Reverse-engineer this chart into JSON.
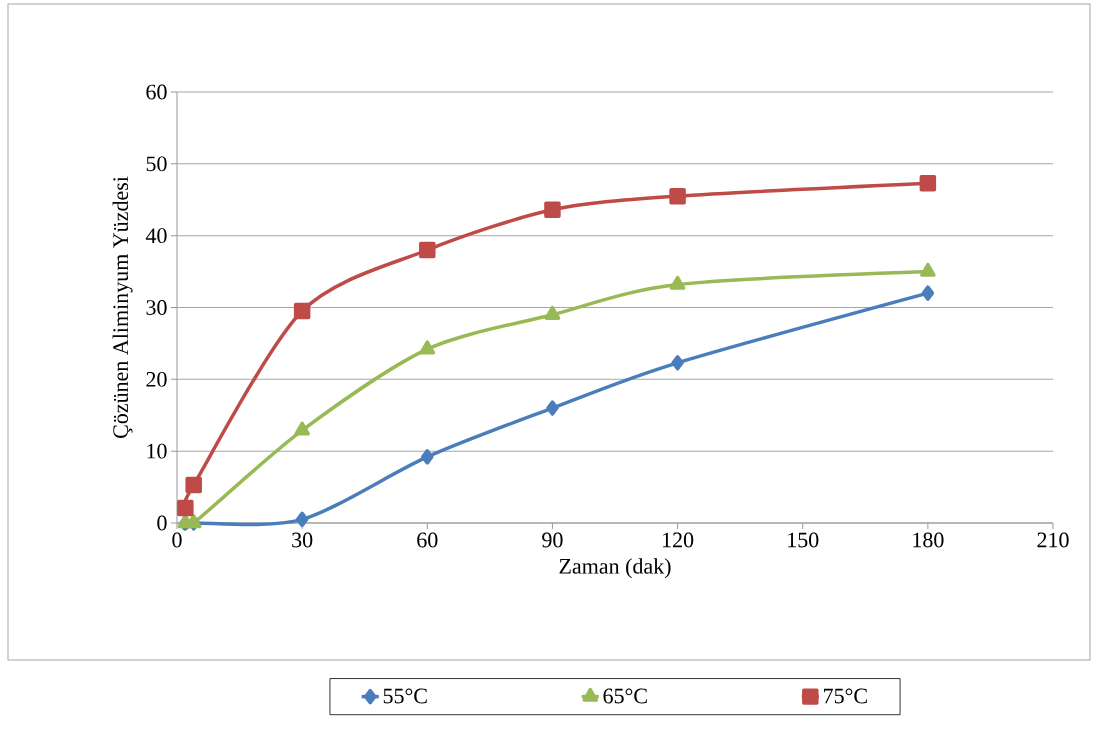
{
  "chart_data": {
    "type": "line",
    "xlabel": "Zaman (dak)",
    "ylabel": "Çözünen Aliminyum Yüzdesi",
    "xlim": [
      0,
      210
    ],
    "xticks": [
      0,
      30,
      60,
      90,
      120,
      150,
      180,
      210
    ],
    "ylim": [
      0,
      60
    ],
    "yticks": [
      0,
      10,
      20,
      30,
      40,
      50,
      60
    ],
    "grid": "y",
    "legend": "bottom",
    "series": [
      {
        "name": "55°C",
        "color": "#4a7ebb",
        "marker": "diamond",
        "x": [
          2,
          4,
          30,
          60,
          90,
          120,
          180
        ],
        "values": [
          0,
          0,
          0.5,
          9.2,
          16,
          22.3,
          32
        ]
      },
      {
        "name": "65°C",
        "color": "#98b954",
        "marker": "triangle",
        "x": [
          2,
          4,
          30,
          60,
          90,
          120,
          180
        ],
        "values": [
          0,
          0,
          12.9,
          24.2,
          29,
          33.2,
          35
        ]
      },
      {
        "name": "75°C",
        "color": "#be4b48",
        "marker": "square",
        "x": [
          2,
          4,
          30,
          60,
          90,
          120,
          180
        ],
        "values": [
          2.1,
          5.3,
          29.5,
          38,
          43.6,
          45.5,
          47.3
        ]
      }
    ]
  }
}
